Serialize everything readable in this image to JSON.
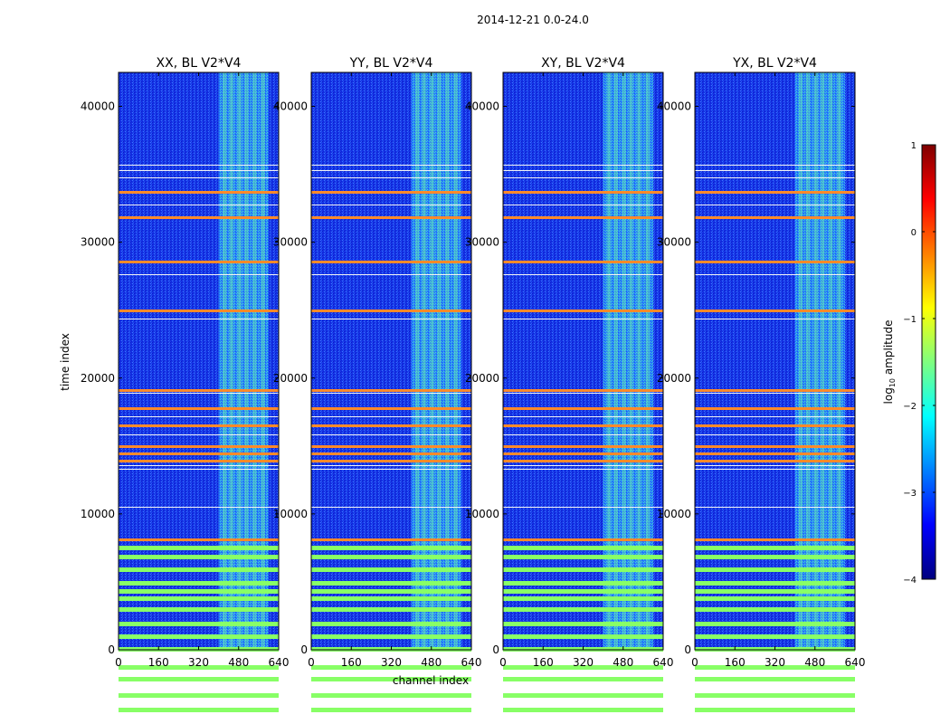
{
  "figure": {
    "suptitle": "2014-12-21 0.0-24.0",
    "xlabel": "channel index",
    "ylabel": "time index"
  },
  "chart_data": [
    {
      "type": "heatmap",
      "title": "XX, BL V2*V4",
      "xlim": [
        0,
        640
      ],
      "ylim": [
        0,
        42500
      ],
      "xticks": [
        "0",
        "160",
        "320",
        "480",
        "640"
      ],
      "yticks": [
        "0",
        "10000",
        "20000",
        "30000",
        "40000"
      ]
    },
    {
      "type": "heatmap",
      "title": "YY, BL V2*V4",
      "xlim": [
        0,
        640
      ],
      "ylim": [
        0,
        42500
      ],
      "xticks": [
        "0",
        "160",
        "320",
        "480",
        "640"
      ],
      "yticks": [
        "0",
        "10000",
        "20000",
        "30000",
        "40000"
      ]
    },
    {
      "type": "heatmap",
      "title": "XY, BL V2*V4",
      "xlim": [
        0,
        640
      ],
      "ylim": [
        0,
        42500
      ],
      "xticks": [
        "0",
        "160",
        "320",
        "480",
        "640"
      ],
      "yticks": [
        "0",
        "10000",
        "20000",
        "30000",
        "40000"
      ]
    },
    {
      "type": "heatmap",
      "title": "YX, BL V2*V4",
      "xlim": [
        0,
        640
      ],
      "ylim": [
        0,
        42500
      ],
      "xticks": [
        "0",
        "160",
        "320",
        "480",
        "640"
      ],
      "yticks": [
        "0",
        "10000",
        "20000",
        "30000",
        "40000"
      ]
    }
  ],
  "colorbar": {
    "label_prefix": "log",
    "label_sub": "10",
    "label_suffix": " amplitude",
    "range": [
      -4,
      1
    ],
    "ticks": [
      "1",
      "0",
      "−1",
      "−2",
      "−3",
      "−4"
    ],
    "colors": [
      "#00007f",
      "#0000ff",
      "#007fff",
      "#00ffff",
      "#7fff7f",
      "#ffff00",
      "#ff7f00",
      "#ff0000",
      "#7f0000"
    ]
  }
}
